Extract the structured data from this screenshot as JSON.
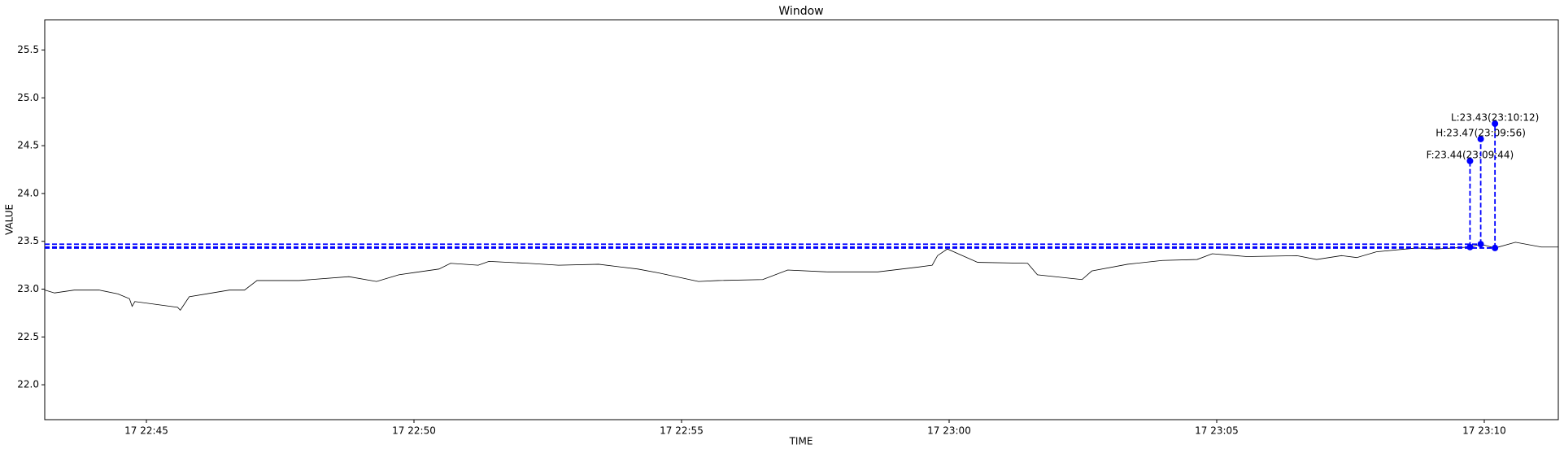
{
  "chart_data": {
    "type": "line",
    "title": "Window",
    "xlabel": "TIME",
    "ylabel": "VALUE",
    "color": "#000000",
    "x": [
      "17 22:43:06",
      "17 22:43:17",
      "17 22:43:39",
      "17 22:44:07",
      "17 22:44:28",
      "17 22:44:41",
      "17 22:44:44",
      "17 22:44:47",
      "17 22:45:35",
      "17 22:45:38",
      "17 22:45:48",
      "17 22:46:33",
      "17 22:46:50",
      "17 22:47:04",
      "17 22:47:18",
      "17 22:47:51",
      "17 22:48:47",
      "17 22:49:18",
      "17 22:49:43",
      "17 22:50:28",
      "17 22:50:41",
      "17 22:51:12",
      "17 22:51:24",
      "17 22:52:08",
      "17 22:52:42",
      "17 22:53:27",
      "17 22:54:11",
      "17 22:54:34",
      "17 22:55:19",
      "17 22:55:41",
      "17 22:56:31",
      "17 22:56:59",
      "17 22:57:44",
      "17 22:58:40",
      "17 22:59:25",
      "17 22:59:41",
      "17 22:59:47",
      "17 22:59:58",
      "17 23:00:15",
      "17 23:00:32",
      "17 23:01:28",
      "17 23:01:39",
      "17 23:02:29",
      "17 23:02:40",
      "17 23:03:20",
      "17 23:03:59",
      "17 23:04:38",
      "17 23:04:55",
      "17 23:05:34",
      "17 23:06:30",
      "17 23:06:52",
      "17 23:07:20",
      "17 23:07:37",
      "17 23:07:59",
      "17 23:08:44",
      "17 23:09:06",
      "17 23:09:44",
      "17 23:09:56",
      "17 23:10:12",
      "17 23:10:35",
      "17 23:11:04",
      "17 23:11:23"
    ],
    "values": [
      22.99,
      22.96,
      22.99,
      22.99,
      22.95,
      22.9,
      22.82,
      22.87,
      22.81,
      22.78,
      22.92,
      22.99,
      22.99,
      23.09,
      23.09,
      23.09,
      23.13,
      23.08,
      23.15,
      23.21,
      23.27,
      23.25,
      23.29,
      23.27,
      23.25,
      23.26,
      23.21,
      23.17,
      23.08,
      23.09,
      23.1,
      23.2,
      23.18,
      23.18,
      23.23,
      23.25,
      23.35,
      23.42,
      23.35,
      23.28,
      23.27,
      23.15,
      23.1,
      23.19,
      23.26,
      23.3,
      23.31,
      23.37,
      23.34,
      23.35,
      23.31,
      23.35,
      23.33,
      23.39,
      23.43,
      23.42,
      23.44,
      23.47,
      23.43,
      23.49,
      23.44,
      23.44
    ],
    "xlim": [
      "17 22:43:06",
      "17 23:11:23"
    ],
    "xticks": [
      "17 22:45",
      "17 22:50",
      "17 22:55",
      "17 23:00",
      "17 23:05",
      "17 23:10"
    ],
    "ylim": [
      21.635,
      25.815
    ],
    "yticks": [
      {
        "value": 22,
        "label": "22.0"
      },
      22.5,
      {
        "value": 23,
        "label": "23.0"
      },
      23.5,
      {
        "value": 24,
        "label": "24.0"
      },
      24.5,
      {
        "value": 25,
        "label": "25.0"
      },
      25.5
    ],
    "marker_color": "#0000ff",
    "annotations": [
      {
        "label": "F:23.44(23:09:44)",
        "x": "17 23:09:44",
        "value": 23.44,
        "top": 24.34
      },
      {
        "label": "H:23.47(23:09:56)",
        "x": "17 23:09:56",
        "value": 23.47,
        "top": 24.57
      },
      {
        "label": "L:23.43(23:10:12)",
        "x": "17 23:10:12",
        "value": 23.43,
        "top": 24.73
      }
    ]
  }
}
